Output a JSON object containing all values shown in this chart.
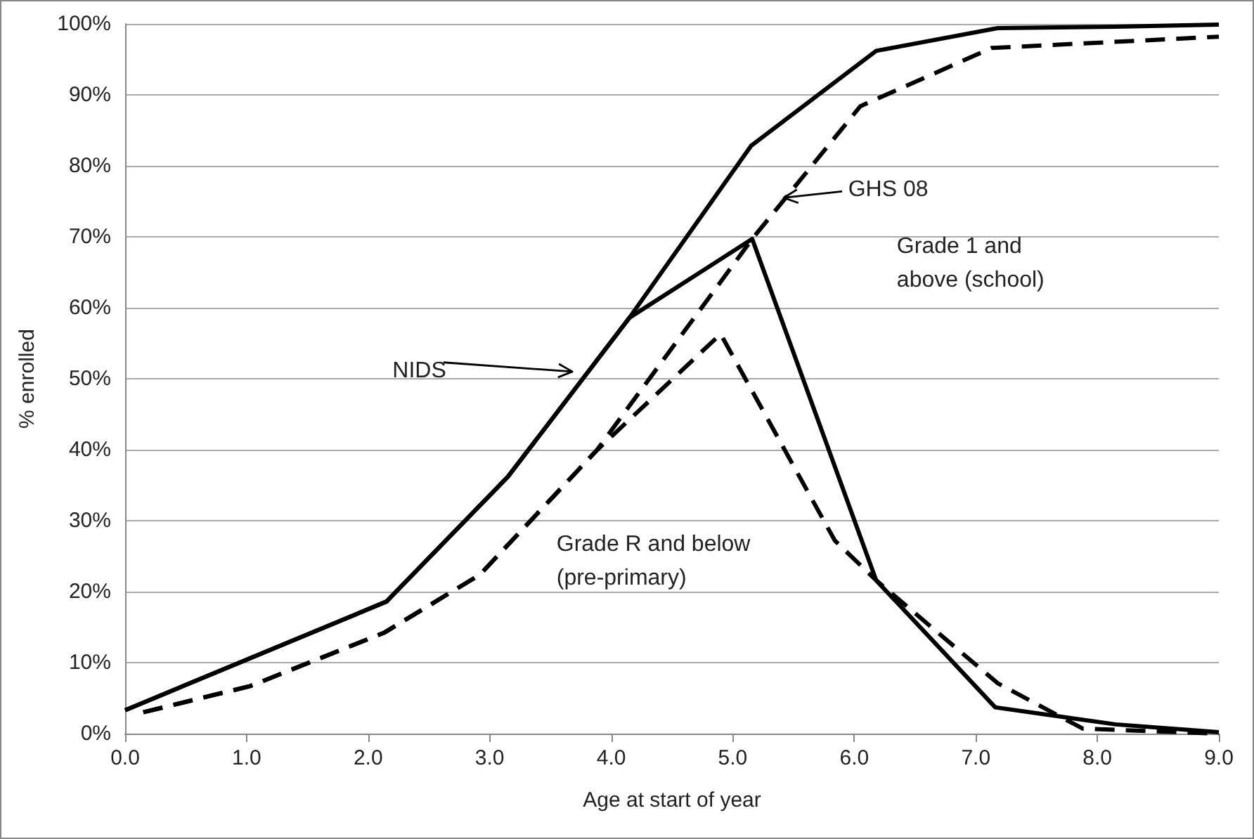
{
  "chart_data": {
    "type": "line",
    "xlabel": "Age at start of year",
    "ylabel": "% enrolled",
    "xlim": [
      0,
      9
    ],
    "xticks": [
      {
        "value": 0,
        "label": "0.0"
      },
      {
        "value": 1,
        "label": "1.0"
      },
      {
        "value": 2,
        "label": "2.0"
      },
      {
        "value": 3,
        "label": "3.0"
      },
      {
        "value": 4,
        "label": "4.0"
      },
      {
        "value": 5,
        "label": "5.0"
      },
      {
        "value": 6,
        "label": "6.0"
      },
      {
        "value": 7,
        "label": "7.0"
      },
      {
        "value": 8,
        "label": "8.0"
      },
      {
        "value": 9,
        "label": "9.0"
      }
    ],
    "ylim": [
      0,
      100
    ],
    "yticks": [
      {
        "value": 0,
        "label": "0%"
      },
      {
        "value": 10,
        "label": "10%"
      },
      {
        "value": 20,
        "label": "20%"
      },
      {
        "value": 30,
        "label": "30%"
      },
      {
        "value": 40,
        "label": "40%"
      },
      {
        "value": 50,
        "label": "50%"
      },
      {
        "value": 60,
        "label": "60%"
      },
      {
        "value": 70,
        "label": "70%"
      },
      {
        "value": 80,
        "label": "80%"
      },
      {
        "value": 90,
        "label": "90%"
      },
      {
        "value": 100,
        "label": "100%"
      }
    ],
    "grid": "y",
    "marker": "none",
    "series": [
      {
        "color": "#000000",
        "line_style": "solid",
        "x": [
          0,
          2.15,
          3.15,
          4.15,
          5.15,
          6.18,
          7.18,
          8.15,
          9.0
        ],
        "values": [
          3.3,
          18.6,
          36.2,
          58.6,
          82.8,
          96.2,
          99.4,
          99.6,
          99.9
        ]
      },
      {
        "color": "#000000",
        "line_style": "solid",
        "x": [
          0,
          2.15,
          3.15,
          4.15,
          5.16,
          6.18,
          7.16,
          8.15,
          9.0
        ],
        "values": [
          3.3,
          18.6,
          36.2,
          58.6,
          69.7,
          21.6,
          3.7,
          1.3,
          0.2
        ]
      },
      {
        "color": "#000000",
        "line_style": "dashed",
        "x": [
          0.15,
          1.03,
          2.13,
          2.92,
          3.88,
          5.16,
          6.05,
          7.13,
          9.0
        ],
        "values": [
          3.0,
          6.7,
          14.2,
          22.4,
          39.9,
          69.7,
          88.4,
          96.6,
          98.2
        ]
      },
      {
        "color": "#000000",
        "line_style": "dashed",
        "x": [
          0.15,
          1.03,
          2.13,
          2.92,
          3.88,
          4.9,
          5.84,
          6.18,
          7.18,
          7.88,
          9.0
        ],
        "values": [
          3.0,
          6.7,
          14.2,
          22.4,
          39.9,
          56.3,
          27.2,
          21.6,
          7.1,
          0.7,
          0
        ]
      }
    ],
    "annotations": [
      "NIDS",
      "GHS 08",
      "Grade 1 and above (school)",
      "Grade R and below (pre-primary)"
    ]
  }
}
